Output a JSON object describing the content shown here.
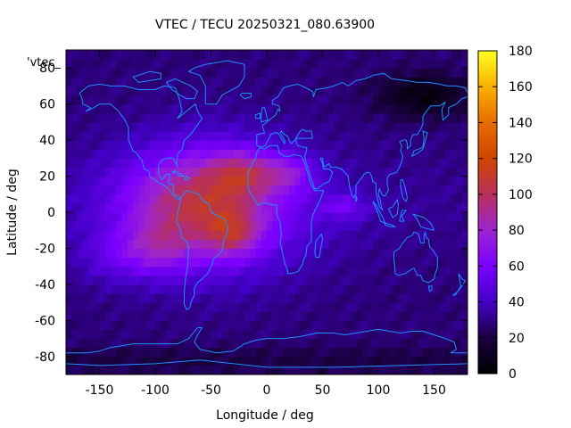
{
  "chart_data": {
    "type": "heatmap",
    "title": "VTEC / TECU 20250321_080.63900",
    "xlabel": "Longitude / deg",
    "ylabel": "Latitude / deg",
    "series_key": "'vtec_",
    "xlim": [
      -180,
      180
    ],
    "ylim": [
      -90,
      90
    ],
    "x_ticks": [
      -150,
      -100,
      -50,
      0,
      50,
      100,
      150
    ],
    "y_ticks": [
      -80,
      -60,
      -40,
      -20,
      0,
      20,
      40,
      60,
      80
    ],
    "colorbar": {
      "range": [
        0,
        180
      ],
      "ticks": [
        0,
        20,
        40,
        60,
        80,
        100,
        120,
        140,
        160,
        180
      ],
      "palette": [
        "#000000",
        "#1a0040",
        "#4400c8",
        "#7c00ff",
        "#9c24d0",
        "#b8305a",
        "#d04400",
        "#e86c00",
        "#f8b000",
        "#ffff20"
      ]
    },
    "coastline_color": "#1e90ff",
    "grid": false,
    "legend": "none"
  }
}
